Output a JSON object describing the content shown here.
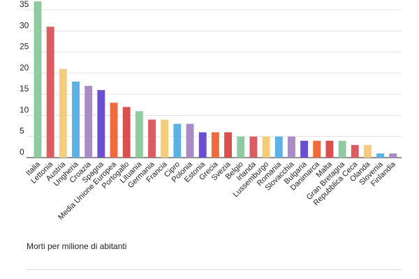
{
  "caption": "Morti per milione di abitanti",
  "chart_data": {
    "type": "bar",
    "title": "",
    "xlabel": "",
    "ylabel": "",
    "ylim": [
      0,
      37
    ],
    "yticks": [
      0,
      5,
      10,
      15,
      20,
      25,
      30,
      35
    ],
    "grid": true,
    "legend": "none",
    "categories": [
      "Italia",
      "Lettonia",
      "Austria",
      "Ungheria",
      "Croazia",
      "Spagna",
      "Media Unione Europea",
      "Portogallo",
      "Lituania",
      "Germania",
      "Francia",
      "Cipro",
      "Polonia",
      "Estonia",
      "Grecia",
      "Svezia",
      "Belgio",
      "Irlanda",
      "Lussemburgo",
      "Romania",
      "Slovacchia",
      "Bulgaria",
      "Danimarca",
      "Malta",
      "Gran Bretagna",
      "Repubblica Ceca",
      "Olanda",
      "Slovenia",
      "Finlandia"
    ],
    "values": [
      37,
      31,
      21,
      18,
      17,
      16,
      13,
      12,
      11,
      9,
      9,
      8,
      8,
      6,
      6,
      6,
      5,
      5,
      5,
      5,
      5,
      4,
      4,
      4,
      4,
      3,
      3,
      1,
      1
    ],
    "colors": [
      "#8fcaa1",
      "#dc5c64",
      "#f3cd7a",
      "#5ab3e4",
      "#a98bc6",
      "#6a4fd2",
      "#f06a3c",
      "#dc4f4f",
      "#8fcaa1",
      "#dc5c64",
      "#f3cd7a",
      "#5ab3e4",
      "#a98bc6",
      "#6a4fd2",
      "#f06a3c",
      "#dc4f4f",
      "#8fcaa1",
      "#dc5c64",
      "#f3cd7a",
      "#5ab3e4",
      "#a98bc6",
      "#6a4fd2",
      "#f06a3c",
      "#dc4f4f",
      "#8fcaa1",
      "#dc5c64",
      "#f3cd7a",
      "#5ab3e4",
      "#a98bc6"
    ]
  }
}
